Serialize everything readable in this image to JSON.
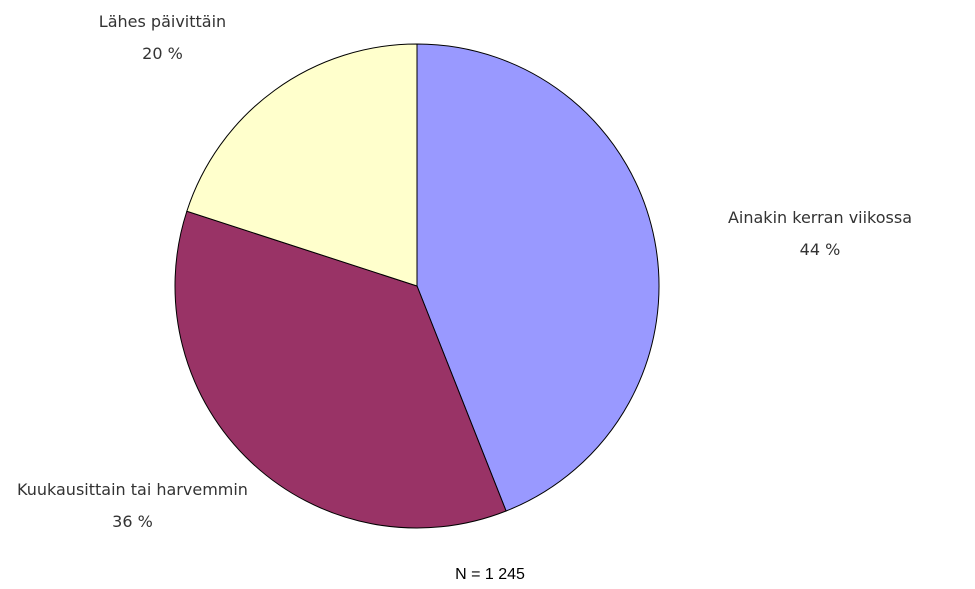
{
  "chart_data": {
    "type": "pie",
    "categories": [
      "Ainakin kerran viikossa",
      "Kuukausittain tai harvemmin",
      "Lähes päivittäin"
    ],
    "values": [
      44,
      36,
      20
    ],
    "value_labels": [
      "44 %",
      "36 %",
      "20 %"
    ],
    "colors": [
      "#9999ff",
      "#993366",
      "#ffffcc"
    ],
    "note": "N = 1 245"
  }
}
